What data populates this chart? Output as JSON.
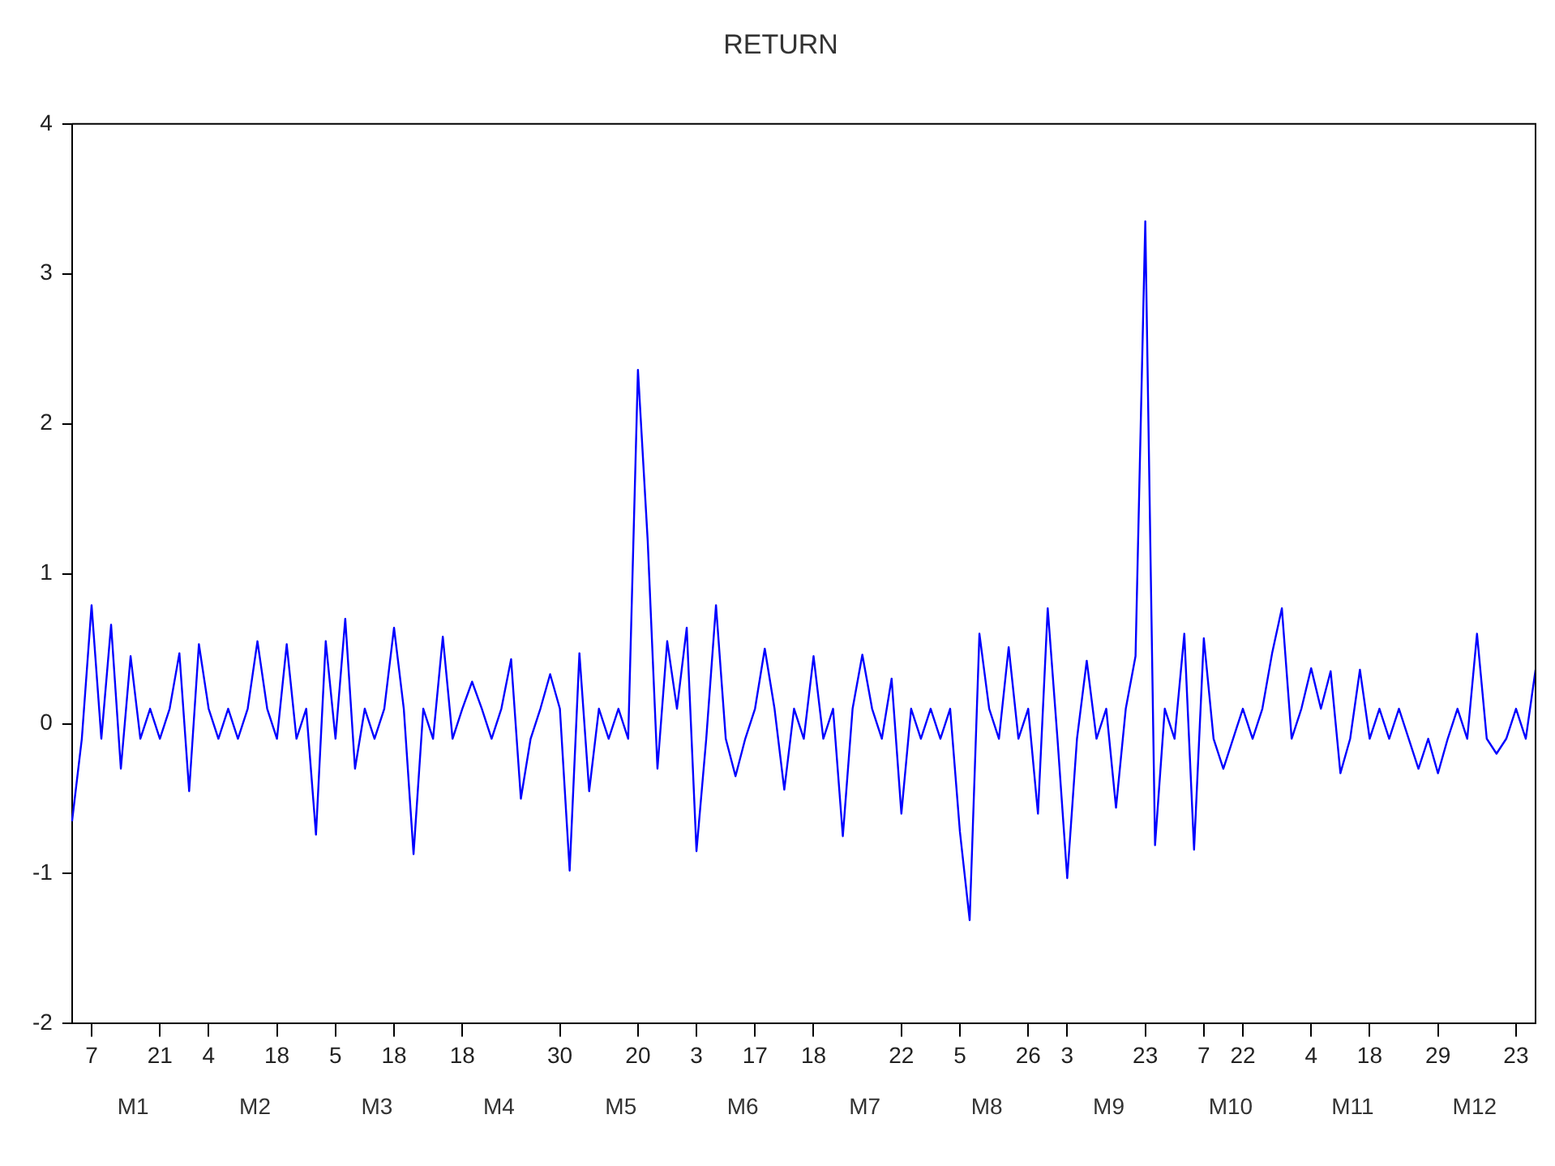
{
  "chart_data": {
    "type": "line",
    "title": "RETURN",
    "color": "#0000ff",
    "categories": [
      null,
      null,
      "7",
      null,
      null,
      null,
      null,
      null,
      null,
      "21",
      null,
      null,
      null,
      null,
      "4",
      null,
      null,
      null,
      null,
      null,
      null,
      "18",
      null,
      null,
      null,
      null,
      null,
      "5",
      null,
      null,
      null,
      null,
      null,
      "18",
      null,
      null,
      null,
      null,
      null,
      null,
      "18",
      null,
      null,
      null,
      null,
      null,
      null,
      null,
      null,
      null,
      "30",
      null,
      null,
      null,
      null,
      null,
      null,
      null,
      "20",
      null,
      null,
      null,
      null,
      null,
      "3",
      null,
      null,
      null,
      null,
      null,
      "17",
      null,
      null,
      null,
      null,
      null,
      "18",
      null,
      null,
      null,
      null,
      null,
      null,
      null,
      null,
      "22",
      null,
      null,
      null,
      null,
      null,
      "5",
      null,
      null,
      null,
      null,
      null,
      null,
      "26",
      null,
      null,
      null,
      "3",
      null,
      null,
      null,
      null,
      null,
      null,
      null,
      "23",
      null,
      null,
      null,
      null,
      null,
      "7",
      null,
      null,
      null,
      "22",
      null,
      null,
      null,
      null,
      null,
      null,
      "4",
      null,
      null,
      null,
      null,
      null,
      "18",
      null,
      null,
      null,
      null,
      null,
      null,
      "29",
      null,
      null,
      null,
      null,
      null,
      null,
      null,
      "23",
      null,
      null
    ],
    "values": [
      -0.65,
      -0.1,
      0.79,
      -0.1,
      0.66,
      -0.3,
      0.45,
      -0.1,
      0.1,
      -0.1,
      0.1,
      0.47,
      -0.45,
      0.53,
      0.1,
      -0.1,
      0.1,
      -0.1,
      0.1,
      0.55,
      0.1,
      -0.1,
      0.53,
      -0.1,
      0.1,
      -0.74,
      0.55,
      -0.1,
      0.7,
      -0.3,
      0.1,
      -0.1,
      0.1,
      0.64,
      0.1,
      -0.87,
      0.1,
      -0.1,
      0.58,
      -0.1,
      0.1,
      0.28,
      0.1,
      -0.1,
      0.1,
      0.43,
      -0.5,
      -0.1,
      0.1,
      0.33,
      0.1,
      -0.98,
      0.47,
      -0.45,
      0.1,
      -0.1,
      0.1,
      -0.1,
      2.36,
      1.22,
      -0.3,
      0.55,
      0.1,
      0.64,
      -0.85,
      -0.1,
      0.79,
      -0.1,
      -0.35,
      -0.1,
      0.1,
      0.5,
      0.1,
      -0.44,
      0.1,
      -0.1,
      0.45,
      -0.1,
      0.1,
      -0.75,
      0.1,
      0.46,
      0.1,
      -0.1,
      0.3,
      -0.6,
      0.1,
      -0.1,
      0.1,
      -0.1,
      0.1,
      -0.72,
      -1.31,
      0.6,
      0.1,
      -0.1,
      0.51,
      -0.1,
      0.1,
      -0.6,
      0.77,
      -0.1,
      -1.03,
      -0.1,
      0.42,
      -0.1,
      0.1,
      -0.56,
      0.1,
      0.45,
      3.35,
      -0.81,
      0.1,
      -0.1,
      0.6,
      -0.84,
      0.57,
      -0.1,
      -0.3,
      -0.1,
      0.1,
      -0.1,
      0.1,
      0.47,
      0.77,
      -0.1,
      0.1,
      0.37,
      0.1,
      0.35,
      -0.33,
      -0.1,
      0.36,
      -0.1,
      0.1,
      -0.1,
      0.1,
      -0.1,
      -0.3,
      -0.1,
      -0.33,
      -0.1,
      0.1,
      -0.1,
      0.6,
      -0.1,
      -0.2,
      -0.1,
      0.1,
      -0.1,
      0.36
    ],
    "annotations": [
      "M1",
      "M2",
      "M3",
      "M4",
      "M5",
      "M6",
      "M7",
      "M8",
      "M9",
      "M10",
      "M11",
      "M12"
    ],
    "ylim": [
      -2,
      4
    ],
    "yticks": [
      -2,
      -1,
      0,
      1,
      2,
      3,
      4
    ]
  }
}
